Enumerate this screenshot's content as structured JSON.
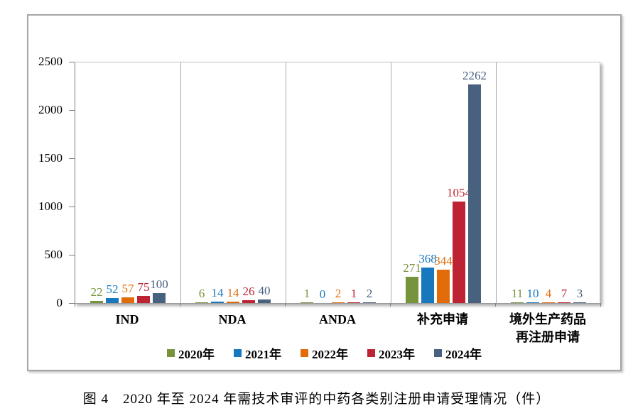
{
  "figure": {
    "caption": "图 4　2020 年至 2024 年需技术审评的中药各类别注册申请受理情况（件）"
  },
  "chart_data": {
    "type": "bar",
    "title": "",
    "categories": [
      "IND",
      "NDA",
      "ANDA",
      "补充申请",
      "境外生产药品再注册申请"
    ],
    "category_label_lines": [
      [
        "IND"
      ],
      [
        "NDA"
      ],
      [
        "ANDA"
      ],
      [
        "补充申请"
      ],
      [
        "境外生产药品",
        "再注册申请"
      ]
    ],
    "series": [
      {
        "name": "2020年",
        "color": "#77933C",
        "values": [
          22,
          6,
          1,
          271,
          11
        ]
      },
      {
        "name": "2021年",
        "color": "#1878BE",
        "values": [
          52,
          14,
          0,
          368,
          10
        ]
      },
      {
        "name": "2022年",
        "color": "#E36C0A",
        "values": [
          57,
          14,
          2,
          344,
          4
        ]
      },
      {
        "name": "2023年",
        "color": "#BE2333",
        "values": [
          75,
          26,
          1,
          1054,
          7
        ]
      },
      {
        "name": "2024年",
        "color": "#48617F",
        "values": [
          100,
          40,
          2,
          2262,
          3
        ]
      }
    ],
    "xlabel": "",
    "ylabel": "",
    "ylim": [
      0,
      2500
    ],
    "yticks": [
      0,
      500,
      1000,
      1500,
      2000,
      2500
    ],
    "data_labels": true,
    "legend_position": "bottom",
    "grid": "vertical-category-separators",
    "colors": {
      "chart_border": "#A6A6A6",
      "plot_border": "#C6C6C6",
      "axis": "#7F7F7F",
      "text": "#000000"
    }
  }
}
